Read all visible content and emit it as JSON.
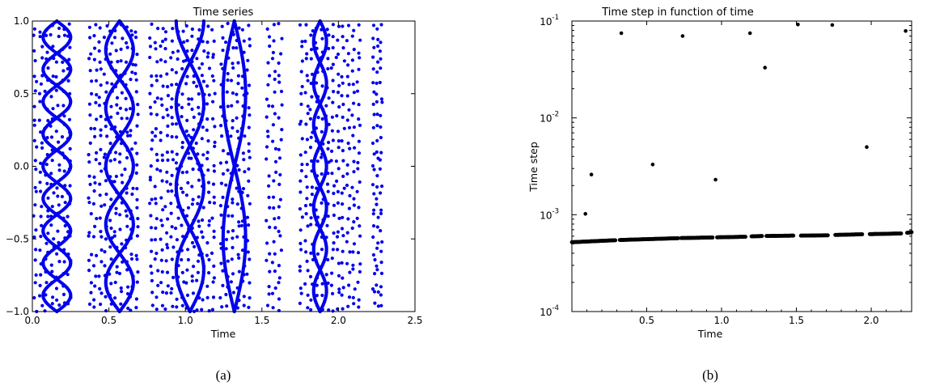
{
  "captions": {
    "a": "(a)",
    "b": "(b)"
  },
  "colors": {
    "series_a": "#0000ee",
    "series_b": "#000000",
    "axes": "#000000",
    "background": "#ffffff"
  },
  "chart_data": [
    {
      "panel": "a",
      "type": "scatter",
      "title": "Time series",
      "xlabel": "Time",
      "ylabel": "",
      "xlim": [
        0.0,
        2.5
      ],
      "ylim": [
        -1.0,
        1.0
      ],
      "x_tick_labels": [
        "0.0",
        "0.5",
        "1.0",
        "1.5",
        "2.0",
        "2.5"
      ],
      "y_tick_labels": [
        "1.0",
        "0.5",
        "0.0",
        "−0.5",
        "−1.0"
      ],
      "grid": false,
      "legend": "none",
      "series": [
        {
          "color": "#0000ee",
          "note_bands": [
            {
              "x_start": 0.0,
              "x_end": 0.26
            },
            {
              "x_start": 0.36,
              "x_end": 0.7
            },
            {
              "x_start": 0.76,
              "x_end": 1.2
            },
            {
              "x_start": 1.22,
              "x_end": 1.43
            },
            {
              "x_start": 1.52,
              "x_end": 1.64
            },
            {
              "x_start": 1.74,
              "x_end": 2.15
            },
            {
              "x_start": 2.22,
              "x_end": 2.29
            }
          ],
          "x_values_at_loop_centers": [
            0.16,
            0.57,
            1.03,
            1.32,
            1.88
          ],
          "lissajous_loops_per_band": [
            9,
            5,
            3.5,
            2,
            7
          ]
        }
      ]
    },
    {
      "panel": "b",
      "type": "scatter",
      "title": "Time step in function of time",
      "xlabel": "Time",
      "ylabel": "Time step",
      "xlim": [
        0.0,
        2.27
      ],
      "ylim": [
        0.0001,
        0.1
      ],
      "yscale": "log",
      "x_tick_labels": [
        "0.5",
        "1.0",
        "1.5",
        "2.0"
      ],
      "y_tick_labels": [
        {
          "base": "10",
          "exp": "-1"
        },
        {
          "base": "10",
          "exp": "-2"
        },
        {
          "base": "10",
          "exp": "-3"
        },
        {
          "base": "10",
          "exp": "-4"
        }
      ],
      "grid": false,
      "legend": "none",
      "outliers": [
        {
          "x": 0.09,
          "y": 0.00102
        },
        {
          "x": 0.13,
          "y": 0.0026
        },
        {
          "x": 0.33,
          "y": 0.075
        },
        {
          "x": 0.54,
          "y": 0.0033
        },
        {
          "x": 0.74,
          "y": 0.07
        },
        {
          "x": 0.96,
          "y": 0.0023
        },
        {
          "x": 1.19,
          "y": 0.075
        },
        {
          "x": 1.29,
          "y": 0.033
        },
        {
          "x": 1.51,
          "y": 0.092
        },
        {
          "x": 1.74,
          "y": 0.091
        },
        {
          "x": 1.97,
          "y": 0.005
        },
        {
          "x": 2.23,
          "y": 0.079
        }
      ],
      "baseline_segments": [
        {
          "x_start": 0.0,
          "x_end": 0.29,
          "y_start": 0.00052,
          "y_end": 0.000545
        },
        {
          "x_start": 0.32,
          "x_end": 0.71,
          "y_start": 0.000548,
          "y_end": 0.000572
        },
        {
          "x_start": 0.73,
          "x_end": 0.94,
          "y_start": 0.000574,
          "y_end": 0.000582
        },
        {
          "x_start": 0.97,
          "x_end": 1.16,
          "y_start": 0.000584,
          "y_end": 0.000592
        },
        {
          "x_start": 1.2,
          "x_end": 1.27,
          "y_start": 0.000598,
          "y_end": 0.000602
        },
        {
          "x_start": 1.3,
          "x_end": 1.48,
          "y_start": 0.000603,
          "y_end": 0.000608
        },
        {
          "x_start": 1.53,
          "x_end": 1.71,
          "y_start": 0.000608,
          "y_end": 0.000613
        },
        {
          "x_start": 1.76,
          "x_end": 1.94,
          "y_start": 0.000618,
          "y_end": 0.000628
        },
        {
          "x_start": 1.99,
          "x_end": 2.2,
          "y_start": 0.00063,
          "y_end": 0.00064
        },
        {
          "x_start": 2.24,
          "x_end": 2.27,
          "y_start": 0.00065,
          "y_end": 0.00066
        }
      ]
    }
  ]
}
